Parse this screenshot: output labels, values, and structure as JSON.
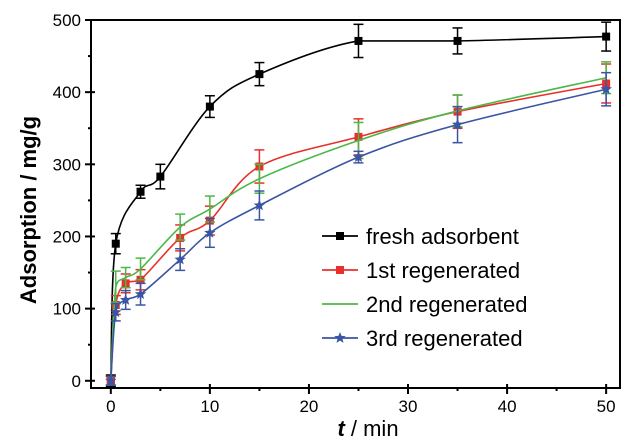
{
  "chart_data": {
    "type": "line",
    "xlabel": {
      "italic_part": "t",
      "rest": " / min"
    },
    "ylabel": "Adsorption / mg/g",
    "xlim": [
      -2,
      51.5
    ],
    "ylim": [
      -10,
      500
    ],
    "xticks": [
      0,
      10,
      20,
      30,
      40,
      50
    ],
    "yticks": [
      0,
      100,
      200,
      300,
      400,
      500
    ],
    "legend_position": "center-right",
    "series": [
      {
        "name": "fresh adsorbent",
        "color": "#000000",
        "marker": "square",
        "x": [
          0,
          0.5,
          3,
          5,
          10,
          15,
          25,
          35,
          50
        ],
        "y": [
          0,
          190,
          262,
          283,
          380,
          425,
          471,
          471,
          477
        ],
        "err": [
          8,
          14,
          9,
          17,
          15,
          16,
          23,
          18,
          20
        ]
      },
      {
        "name": "1st regenerated",
        "color": "#e8302b",
        "marker": "square",
        "x": [
          0,
          0.5,
          1.5,
          3,
          7,
          10,
          15,
          25,
          35,
          50
        ],
        "y": [
          0,
          105,
          135,
          140,
          198,
          222,
          297,
          338,
          373,
          412
        ],
        "err": [
          6,
          13,
          13,
          14,
          18,
          20,
          23,
          25,
          23,
          27
        ]
      },
      {
        "name": "2nd regenerated",
        "color": "#4cb848",
        "marker": "none",
        "x": [
          0,
          0.5,
          1.5,
          3,
          7,
          10,
          15,
          25,
          35,
          50
        ],
        "y": [
          0,
          130,
          143,
          155,
          213,
          238,
          280,
          333,
          374,
          420
        ],
        "err": [
          6,
          22,
          14,
          15,
          18,
          18,
          20,
          25,
          22,
          22
        ]
      },
      {
        "name": "3rd regenerated",
        "color": "#3a55a4",
        "marker": "star",
        "x": [
          0,
          0.5,
          1.5,
          3,
          7,
          10,
          15,
          25,
          35,
          50
        ],
        "y": [
          0,
          95,
          112,
          120,
          168,
          205,
          243,
          310,
          355,
          404
        ],
        "err": [
          6,
          12,
          13,
          15,
          15,
          20,
          20,
          8,
          25,
          23
        ]
      }
    ]
  }
}
